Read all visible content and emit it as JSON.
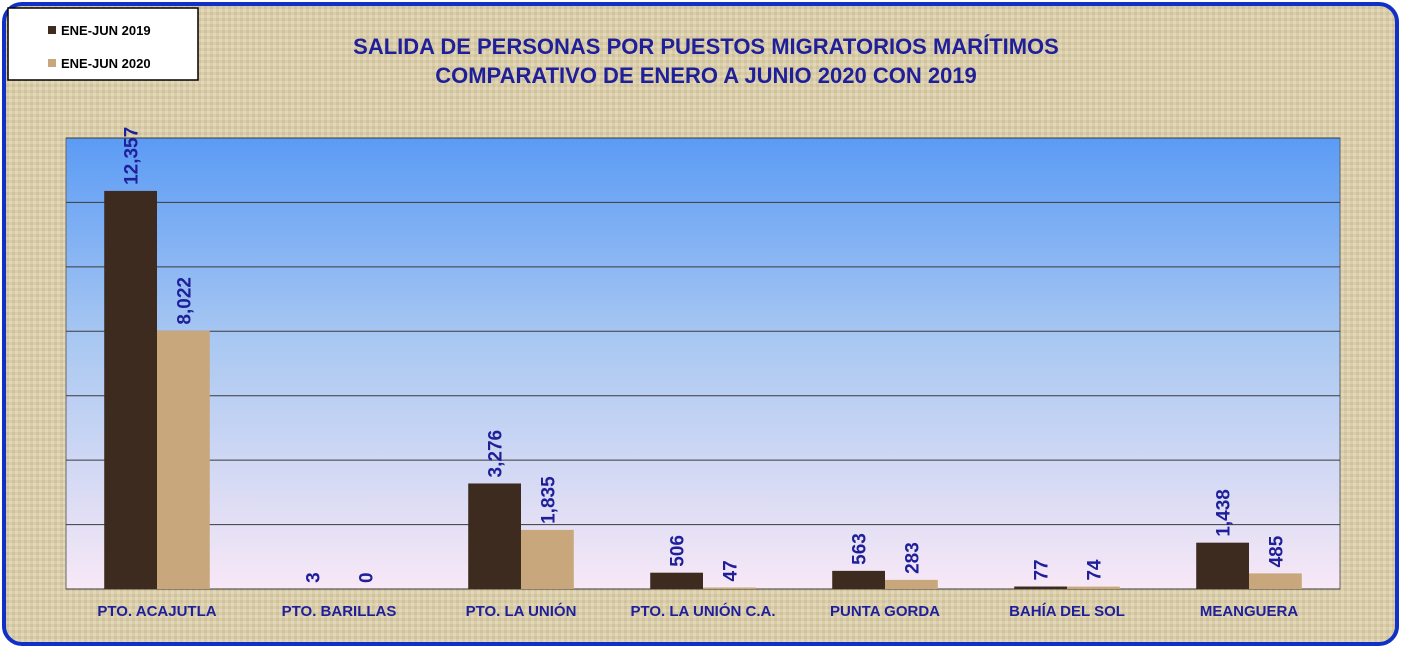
{
  "chart_data": {
    "type": "bar",
    "title": "SALIDA DE PERSONAS POR PUESTOS MIGRATORIOS MARÍTIMOS",
    "subtitle": "COMPARATIVO DE ENERO A JUNIO 2020 CON 2019",
    "categories": [
      "PTO. ACAJUTLA",
      "PTO. BARILLAS",
      "PTO. LA UNIÓN",
      "PTO. LA UNIÓN C.A.",
      "PUNTA GORDA",
      "BAHÍA DEL SOL",
      "MEANGUERA"
    ],
    "series": [
      {
        "name": "ENE-JUN 2019",
        "color": "#3d2b1f",
        "values": [
          12357,
          3,
          3276,
          506,
          563,
          77,
          1438
        ],
        "value_labels": [
          "12,357",
          "3",
          "3,276",
          "506",
          "563",
          "77",
          "1,438"
        ]
      },
      {
        "name": "ENE-JUN 2020",
        "color": "#c9a77c",
        "values": [
          8022,
          0,
          1835,
          47,
          283,
          74,
          485
        ],
        "value_labels": [
          "8,022",
          "0",
          "1,835",
          "47",
          "283",
          "74",
          "485"
        ]
      }
    ],
    "ylim": [
      0,
      14000
    ],
    "yticks": [
      0,
      2000,
      4000,
      6000,
      8000,
      10000,
      12000,
      14000
    ],
    "grid": true,
    "legend": "top-left"
  }
}
